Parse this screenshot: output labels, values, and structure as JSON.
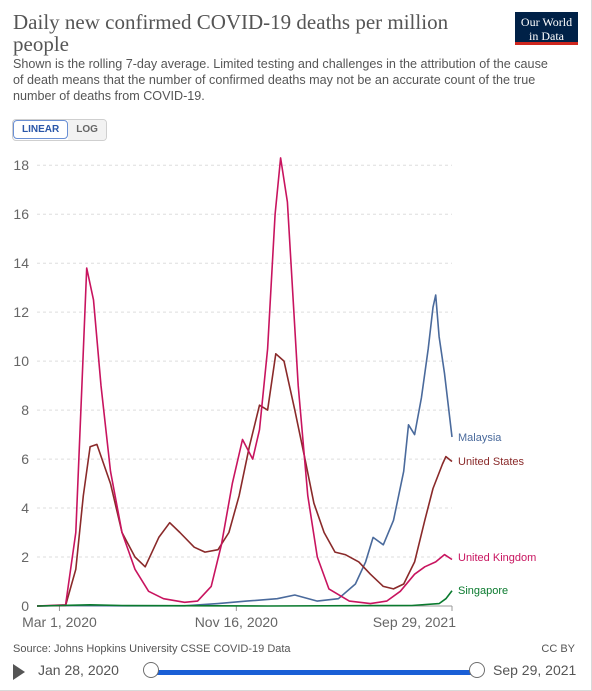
{
  "header": {
    "title": "Daily new confirmed COVID-19 deaths per million people",
    "subtitle": "Shown is the rolling 7-day average. Limited testing and challenges in the attribution of the cause of death means that the number of confirmed deaths may not be an accurate count of the true number of deaths from COVID-19.",
    "logo_line1": "Our World",
    "logo_line2": "in Data",
    "logo_colors": {
      "background": "#002147",
      "accent": "#ce261e"
    }
  },
  "scale_toggle": {
    "linear_label": "LINEAR",
    "log_label": "LOG",
    "selected": "LINEAR"
  },
  "footer": {
    "source": "Source: Johns Hopkins University CSSE COVID-19 Data",
    "license": "CC BY"
  },
  "timeline": {
    "start_label": "Jan 28, 2020",
    "end_label": "Sep 29, 2021",
    "range_selected": [
      0,
      1
    ],
    "play_icon": "play-icon"
  },
  "chart_data": {
    "type": "line",
    "ylim": [
      0,
      18.5
    ],
    "yticks": [
      0,
      2,
      4,
      6,
      8,
      10,
      12,
      14,
      16,
      18
    ],
    "ytick_labels": [
      "0",
      "2",
      "4",
      "6",
      "8",
      "10",
      "12",
      "14",
      "16",
      "18"
    ],
    "xlim": [
      "2020-01-28",
      "2021-09-29"
    ],
    "xticks": [
      "2020-03-01",
      "2020-11-16",
      "2021-09-29"
    ],
    "xtick_labels": [
      "Mar 1, 2020",
      "Nov 16, 2020",
      "Sep 29, 2021"
    ],
    "grid": "horizontal dashed",
    "legend": "inline labels at line ends",
    "series": [
      {
        "name": "Malaysia",
        "color": "#4a6a9c",
        "points": [
          [
            "2020-01-28",
            0
          ],
          [
            "2020-03-20",
            0.02
          ],
          [
            "2020-06-01",
            0.01
          ],
          [
            "2020-09-01",
            0.01
          ],
          [
            "2020-10-20",
            0.1
          ],
          [
            "2020-12-01",
            0.2
          ],
          [
            "2021-01-15",
            0.3
          ],
          [
            "2021-02-10",
            0.45
          ],
          [
            "2021-03-15",
            0.2
          ],
          [
            "2021-04-15",
            0.3
          ],
          [
            "2021-05-10",
            0.9
          ],
          [
            "2021-05-25",
            1.8
          ],
          [
            "2021-06-05",
            2.8
          ],
          [
            "2021-06-20",
            2.5
          ],
          [
            "2021-07-05",
            3.5
          ],
          [
            "2021-07-20",
            5.5
          ],
          [
            "2021-07-27",
            7.4
          ],
          [
            "2021-08-05",
            7.0
          ],
          [
            "2021-08-15",
            8.5
          ],
          [
            "2021-08-25",
            10.5
          ],
          [
            "2021-09-01",
            12.2
          ],
          [
            "2021-09-05",
            12.7
          ],
          [
            "2021-09-10",
            11.0
          ],
          [
            "2021-09-18",
            9.5
          ],
          [
            "2021-09-29",
            6.9
          ]
        ]
      },
      {
        "name": "United States",
        "color": "#8a2a2a",
        "points": [
          [
            "2020-01-28",
            0
          ],
          [
            "2020-03-10",
            0.02
          ],
          [
            "2020-03-25",
            1.5
          ],
          [
            "2020-04-05",
            4.5
          ],
          [
            "2020-04-15",
            6.5
          ],
          [
            "2020-04-25",
            6.6
          ],
          [
            "2020-05-15",
            5.0
          ],
          [
            "2020-06-01",
            3.0
          ],
          [
            "2020-06-20",
            2.0
          ],
          [
            "2020-07-05",
            1.6
          ],
          [
            "2020-07-25",
            2.8
          ],
          [
            "2020-08-10",
            3.4
          ],
          [
            "2020-08-25",
            3.0
          ],
          [
            "2020-09-15",
            2.4
          ],
          [
            "2020-10-01",
            2.2
          ],
          [
            "2020-10-20",
            2.3
          ],
          [
            "2020-11-05",
            3.0
          ],
          [
            "2020-11-20",
            4.5
          ],
          [
            "2020-12-05",
            6.5
          ],
          [
            "2020-12-20",
            8.2
          ],
          [
            "2021-01-01",
            8.0
          ],
          [
            "2021-01-13",
            10.3
          ],
          [
            "2021-01-25",
            10.0
          ],
          [
            "2021-02-10",
            8.0
          ],
          [
            "2021-02-25",
            6.0
          ],
          [
            "2021-03-10",
            4.2
          ],
          [
            "2021-03-25",
            3.0
          ],
          [
            "2021-04-10",
            2.2
          ],
          [
            "2021-04-25",
            2.1
          ],
          [
            "2021-05-15",
            1.8
          ],
          [
            "2021-06-01",
            1.3
          ],
          [
            "2021-06-20",
            0.8
          ],
          [
            "2021-07-05",
            0.7
          ],
          [
            "2021-07-20",
            0.9
          ],
          [
            "2021-08-05",
            1.8
          ],
          [
            "2021-08-20",
            3.5
          ],
          [
            "2021-09-01",
            4.8
          ],
          [
            "2021-09-15",
            5.8
          ],
          [
            "2021-09-20",
            6.1
          ],
          [
            "2021-09-29",
            5.9
          ]
        ]
      },
      {
        "name": "United Kingdom",
        "color": "#c8145f",
        "points": [
          [
            "2020-01-28",
            0
          ],
          [
            "2020-03-10",
            0.05
          ],
          [
            "2020-03-25",
            3.0
          ],
          [
            "2020-04-03",
            9.0
          ],
          [
            "2020-04-10",
            13.8
          ],
          [
            "2020-04-20",
            12.5
          ],
          [
            "2020-05-01",
            9.0
          ],
          [
            "2020-05-15",
            5.5
          ],
          [
            "2020-06-01",
            3.0
          ],
          [
            "2020-06-20",
            1.5
          ],
          [
            "2020-07-10",
            0.6
          ],
          [
            "2020-08-01",
            0.3
          ],
          [
            "2020-09-01",
            0.15
          ],
          [
            "2020-09-20",
            0.2
          ],
          [
            "2020-10-10",
            0.8
          ],
          [
            "2020-10-25",
            2.5
          ],
          [
            "2020-11-10",
            5.0
          ],
          [
            "2020-11-25",
            6.8
          ],
          [
            "2020-12-10",
            6.0
          ],
          [
            "2020-12-20",
            7.2
          ],
          [
            "2021-01-01",
            10.5
          ],
          [
            "2021-01-12",
            16.0
          ],
          [
            "2021-01-20",
            18.3
          ],
          [
            "2021-01-30",
            16.5
          ],
          [
            "2021-02-15",
            9.0
          ],
          [
            "2021-03-01",
            4.5
          ],
          [
            "2021-03-15",
            2.0
          ],
          [
            "2021-04-01",
            0.7
          ],
          [
            "2021-05-01",
            0.2
          ],
          [
            "2021-06-01",
            0.1
          ],
          [
            "2021-06-25",
            0.2
          ],
          [
            "2021-07-15",
            0.6
          ],
          [
            "2021-08-05",
            1.3
          ],
          [
            "2021-08-20",
            1.6
          ],
          [
            "2021-09-05",
            1.8
          ],
          [
            "2021-09-18",
            2.1
          ],
          [
            "2021-09-29",
            1.9
          ]
        ]
      },
      {
        "name": "Singapore",
        "color": "#0a7a2e",
        "points": [
          [
            "2020-01-28",
            0
          ],
          [
            "2020-04-15",
            0.05
          ],
          [
            "2020-06-01",
            0.02
          ],
          [
            "2021-01-01",
            0
          ],
          [
            "2021-08-01",
            0.02
          ],
          [
            "2021-09-10",
            0.1
          ],
          [
            "2021-09-20",
            0.3
          ],
          [
            "2021-09-29",
            0.62
          ]
        ]
      }
    ]
  }
}
